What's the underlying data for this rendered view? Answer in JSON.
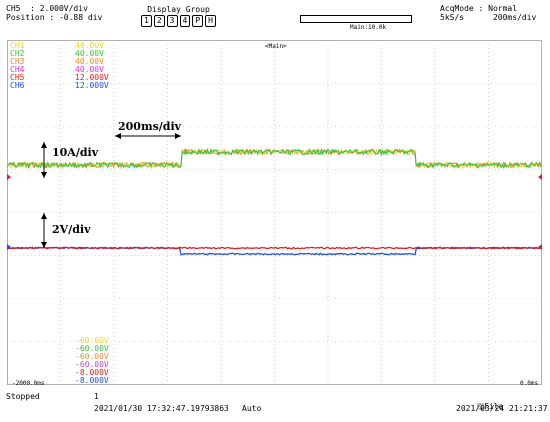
{
  "header": {
    "ch_line": "CH5  : 2.000V/div",
    "position_line": "Position : -0.88 div",
    "display_group": {
      "title": "Display Group",
      "buttons": [
        "1",
        "2",
        "3",
        "4",
        "P",
        "H"
      ]
    },
    "zoom_label": "Main:10.0k",
    "acq_mode_line": "AcqMode : Normal",
    "rate_line": "5kS/s      200ms/div"
  },
  "grid": {
    "main_label": "<Main>",
    "time_left": "-2000.0ms",
    "time_right": "0.0ms",
    "colors": {
      "grid": "#b0b0b0",
      "ch1": "#e8d23a",
      "ch2": "#3fbf3f",
      "ch3": "#f08a2a",
      "ch4": "#d23ad2",
      "ch5": "#e02020",
      "ch6": "#2050e0"
    }
  },
  "legend_top": [
    {
      "name": "CH1",
      "value": "40.00V",
      "color": "#e8d23a"
    },
    {
      "name": "CH2",
      "value": "40.00V",
      "color": "#3fbf3f"
    },
    {
      "name": "CH3",
      "value": "40.00V",
      "color": "#f08a2a"
    },
    {
      "name": "CH4",
      "value": "40.00V",
      "color": "#d23ad2"
    },
    {
      "name": "CH5",
      "value": "12.000V",
      "color": "#e02020"
    },
    {
      "name": "CH6",
      "value": "12.000V",
      "color": "#2050e0"
    }
  ],
  "legend_bottom": [
    {
      "value": "-60.00V",
      "color": "#e8d23a"
    },
    {
      "value": "-60.00V",
      "color": "#3fbf3f"
    },
    {
      "value": "-60.00V",
      "color": "#f08a2a"
    },
    {
      "value": "-60.00V",
      "color": "#d23ad2"
    },
    {
      "value": "-8.000V",
      "color": "#e02020"
    },
    {
      "value": "-8.000V",
      "color": "#2050e0"
    }
  ],
  "annotations": {
    "time_div": "200ms/div",
    "current_div": "10A/div",
    "voltage_div": "2V/div"
  },
  "status": {
    "state": "Stopped",
    "count": "1",
    "trigger_time": "2021/01/30 17:32:47.19793863",
    "mode": "Auto",
    "file_label": "File",
    "clock": "2021/03/24 21:21:37"
  }
}
